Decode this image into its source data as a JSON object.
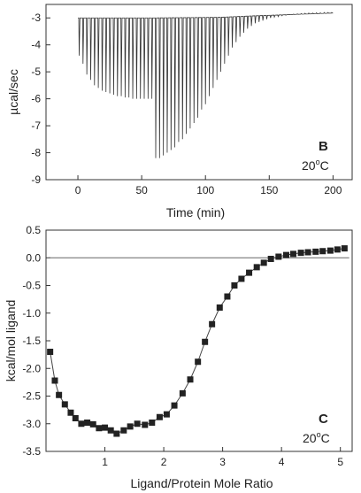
{
  "chart_data": [
    {
      "type": "line",
      "panel_label": "B",
      "temperature": {
        "value": "20",
        "sup": "o",
        "unit": "C"
      },
      "xlabel": "Time (min)",
      "ylabel": "µcal/sec",
      "xlim": [
        -25,
        215
      ],
      "ylim": [
        -9,
        -2.5
      ],
      "xticks": [
        0,
        50,
        100,
        150,
        200
      ],
      "yticks": [
        -3,
        -4,
        -5,
        -6,
        -7,
        -8,
        -9
      ],
      "baseline": [
        {
          "x": 0,
          "y": -3.0
        },
        {
          "x": 60,
          "y": -3.0
        },
        {
          "x": 110,
          "y": -2.98
        },
        {
          "x": 140,
          "y": -2.92
        },
        {
          "x": 170,
          "y": -2.87
        },
        {
          "x": 200,
          "y": -2.82
        }
      ],
      "series": [
        {
          "values": [
            {
              "x": 1,
              "y": -4.4
            },
            {
              "x": 4,
              "y": -4.7
            },
            {
              "x": 7,
              "y": -5.1
            },
            {
              "x": 10,
              "y": -5.3
            },
            {
              "x": 13,
              "y": -5.5
            },
            {
              "x": 16,
              "y": -5.6
            },
            {
              "x": 19,
              "y": -5.7
            },
            {
              "x": 22,
              "y": -5.75
            },
            {
              "x": 25,
              "y": -5.8
            },
            {
              "x": 28,
              "y": -5.85
            },
            {
              "x": 31,
              "y": -5.9
            },
            {
              "x": 34,
              "y": -5.9
            },
            {
              "x": 37,
              "y": -5.95
            },
            {
              "x": 40,
              "y": -5.95
            },
            {
              "x": 43,
              "y": -6.0
            },
            {
              "x": 46,
              "y": -6.0
            },
            {
              "x": 49,
              "y": -6.0
            },
            {
              "x": 52,
              "y": -6.0
            },
            {
              "x": 55,
              "y": -6.0
            },
            {
              "x": 58,
              "y": -6.0
            },
            {
              "x": 61,
              "y": -8.2
            },
            {
              "x": 64,
              "y": -8.2
            },
            {
              "x": 67,
              "y": -8.1
            },
            {
              "x": 70,
              "y": -8.0
            },
            {
              "x": 73,
              "y": -7.9
            },
            {
              "x": 76,
              "y": -7.8
            },
            {
              "x": 79,
              "y": -7.6
            },
            {
              "x": 82,
              "y": -7.5
            },
            {
              "x": 85,
              "y": -7.3
            },
            {
              "x": 88,
              "y": -7.1
            },
            {
              "x": 91,
              "y": -6.9
            },
            {
              "x": 94,
              "y": -6.7
            },
            {
              "x": 97,
              "y": -6.4
            },
            {
              "x": 100,
              "y": -6.2
            },
            {
              "x": 103,
              "y": -5.9
            },
            {
              "x": 106,
              "y": -5.6
            },
            {
              "x": 109,
              "y": -5.3
            },
            {
              "x": 112,
              "y": -5.0
            },
            {
              "x": 115,
              "y": -4.7
            },
            {
              "x": 118,
              "y": -4.4
            },
            {
              "x": 121,
              "y": -4.1
            },
            {
              "x": 124,
              "y": -3.9
            },
            {
              "x": 127,
              "y": -3.7
            },
            {
              "x": 130,
              "y": -3.55
            },
            {
              "x": 133,
              "y": -3.4
            },
            {
              "x": 136,
              "y": -3.3
            },
            {
              "x": 139,
              "y": -3.2
            },
            {
              "x": 142,
              "y": -3.15
            },
            {
              "x": 145,
              "y": -3.1
            },
            {
              "x": 148,
              "y": -3.05
            },
            {
              "x": 151,
              "y": -3.0
            },
            {
              "x": 154,
              "y": -2.97
            },
            {
              "x": 157,
              "y": -2.95
            },
            {
              "x": 160,
              "y": -2.92
            },
            {
              "x": 163,
              "y": -2.9
            },
            {
              "x": 166,
              "y": -2.88
            },
            {
              "x": 169,
              "y": -2.86
            },
            {
              "x": 172,
              "y": -2.85
            },
            {
              "x": 175,
              "y": -2.84
            },
            {
              "x": 178,
              "y": -2.83
            },
            {
              "x": 181,
              "y": -2.82
            },
            {
              "x": 184,
              "y": -2.82
            },
            {
              "x": 187,
              "y": -2.81
            },
            {
              "x": 190,
              "y": -2.81
            },
            {
              "x": 193,
              "y": -2.8
            },
            {
              "x": 196,
              "y": -2.8
            },
            {
              "x": 199,
              "y": -2.8
            }
          ]
        }
      ]
    },
    {
      "type": "scatter",
      "panel_label": "C",
      "temperature": {
        "value": "20",
        "sup": "o",
        "unit": "C"
      },
      "xlabel": "Ligand/Protein Mole Ratio",
      "ylabel": "kcal/mol ligand",
      "xlim": [
        0,
        5.2
      ],
      "ylim": [
        -3.5,
        0.5
      ],
      "xticks": [
        1,
        2,
        3,
        4,
        5
      ],
      "yticks": [
        0.5,
        0.0,
        -0.5,
        -1.0,
        -1.5,
        -2.0,
        -2.5,
        -3.0,
        -3.5
      ],
      "ytick_labels": [
        "0.5",
        "0.0",
        "-0.5",
        "-1.0",
        "-1.5",
        "-2.0",
        "-2.5",
        "-3.0",
        "-3.5"
      ],
      "zero_line": 0.0,
      "fit_line": true,
      "series": [
        {
          "values": [
            {
              "x": 0.07,
              "y": -1.7
            },
            {
              "x": 0.15,
              "y": -2.22
            },
            {
              "x": 0.22,
              "y": -2.48
            },
            {
              "x": 0.32,
              "y": -2.65
            },
            {
              "x": 0.42,
              "y": -2.8
            },
            {
              "x": 0.5,
              "y": -2.9
            },
            {
              "x": 0.6,
              "y": -3.0
            },
            {
              "x": 0.7,
              "y": -2.98
            },
            {
              "x": 0.8,
              "y": -3.01
            },
            {
              "x": 0.9,
              "y": -3.08
            },
            {
              "x": 1.0,
              "y": -3.07
            },
            {
              "x": 1.1,
              "y": -3.12
            },
            {
              "x": 1.2,
              "y": -3.18
            },
            {
              "x": 1.32,
              "y": -3.12
            },
            {
              "x": 1.43,
              "y": -3.05
            },
            {
              "x": 1.55,
              "y": -3.0
            },
            {
              "x": 1.68,
              "y": -3.02
            },
            {
              "x": 1.8,
              "y": -2.98
            },
            {
              "x": 1.93,
              "y": -2.88
            },
            {
              "x": 2.05,
              "y": -2.83
            },
            {
              "x": 2.18,
              "y": -2.67
            },
            {
              "x": 2.32,
              "y": -2.45
            },
            {
              "x": 2.45,
              "y": -2.2
            },
            {
              "x": 2.58,
              "y": -1.88
            },
            {
              "x": 2.7,
              "y": -1.52
            },
            {
              "x": 2.82,
              "y": -1.2
            },
            {
              "x": 2.95,
              "y": -0.9
            },
            {
              "x": 3.08,
              "y": -0.7
            },
            {
              "x": 3.2,
              "y": -0.5
            },
            {
              "x": 3.32,
              "y": -0.38
            },
            {
              "x": 3.45,
              "y": -0.27
            },
            {
              "x": 3.58,
              "y": -0.17
            },
            {
              "x": 3.7,
              "y": -0.09
            },
            {
              "x": 3.82,
              "y": -0.02
            },
            {
              "x": 3.95,
              "y": 0.02
            },
            {
              "x": 4.08,
              "y": 0.05
            },
            {
              "x": 4.2,
              "y": 0.07
            },
            {
              "x": 4.33,
              "y": 0.09
            },
            {
              "x": 4.45,
              "y": 0.1
            },
            {
              "x": 4.58,
              "y": 0.11
            },
            {
              "x": 4.7,
              "y": 0.12
            },
            {
              "x": 4.83,
              "y": 0.13
            },
            {
              "x": 4.95,
              "y": 0.15
            },
            {
              "x": 5.07,
              "y": 0.17
            }
          ]
        }
      ]
    }
  ]
}
